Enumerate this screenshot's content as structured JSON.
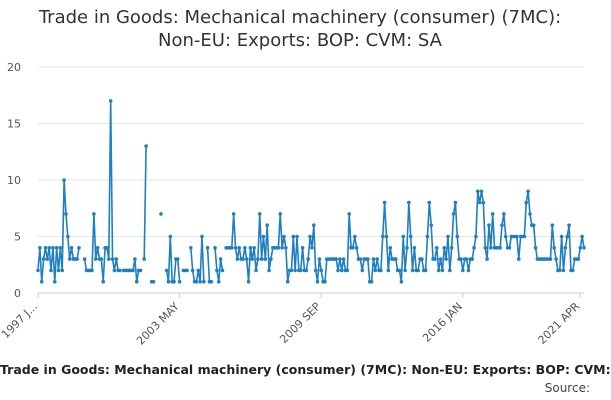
{
  "chart_data": {
    "type": "line",
    "title_lines": [
      "Trade in Goods: Mechanical machinery (consumer) (7MC):",
      "Non-EU: Exports: BOP: CVM: SA"
    ],
    "caption": "Trade in Goods: Mechanical machinery (consumer) (7MC): Non-EU: Exports: BOP: CVM:",
    "source_label": "Source:",
    "x_tick_labels": [
      "1997 J...",
      "2003 MAY",
      "2009 SEP",
      "2016 JAN",
      "2021 APR"
    ],
    "x_tick_positions": [
      0,
      76,
      152,
      228,
      291
    ],
    "y_ticks": [
      0,
      5,
      10,
      15,
      20
    ],
    "ylim": [
      0,
      20
    ],
    "grid": true,
    "line_color": "#1f7fc0",
    "series": [
      {
        "values": [
          2,
          4,
          1,
          3,
          4,
          3,
          4,
          2,
          4,
          1,
          4,
          2,
          4,
          2,
          10,
          7,
          5,
          3,
          4,
          3,
          3,
          3,
          4,
          null,
          null,
          3,
          2,
          2,
          2,
          2,
          7,
          3,
          4,
          3,
          3,
          1,
          4,
          4,
          3,
          17,
          3,
          2,
          3,
          2,
          2,
          null,
          2,
          2,
          2,
          2,
          2,
          2,
          3,
          1,
          2,
          2,
          null,
          3,
          13,
          null,
          null,
          1,
          1,
          null,
          null,
          null,
          7,
          null,
          null,
          2,
          1,
          5,
          1,
          1,
          3,
          3,
          1,
          null,
          2,
          2,
          2,
          null,
          4,
          2,
          1,
          1,
          2,
          1,
          5,
          1,
          null,
          4,
          1,
          1,
          null,
          4,
          2,
          1,
          3,
          2,
          null,
          4,
          4,
          4,
          4,
          7,
          4,
          3,
          4,
          3,
          3,
          4,
          3,
          1,
          4,
          3,
          4,
          2,
          3,
          7,
          3,
          5,
          3,
          6,
          2,
          3,
          4,
          4,
          4,
          4,
          7,
          4,
          5,
          4,
          1,
          2,
          2,
          5,
          2,
          5,
          2,
          2,
          4,
          2,
          2,
          3,
          5,
          4,
          6,
          2,
          1,
          3,
          2,
          1,
          1,
          3,
          3,
          3,
          3,
          3,
          3,
          2,
          3,
          2,
          3,
          2,
          2,
          7,
          4,
          4,
          5,
          4,
          3,
          3,
          2,
          3,
          3,
          3,
          1,
          1,
          3,
          2,
          3,
          2,
          2,
          5,
          8,
          5,
          2,
          4,
          3,
          3,
          3,
          2,
          2,
          1,
          5,
          2,
          4,
          8,
          5,
          2,
          4,
          2,
          2,
          3,
          3,
          2,
          2,
          5,
          8,
          6,
          3,
          3,
          4,
          2,
          3,
          2,
          4,
          3,
          5,
          2,
          4,
          7,
          8,
          5,
          3,
          3,
          2,
          3,
          3,
          2,
          3,
          3,
          4,
          5,
          9,
          8,
          9,
          8,
          4,
          3,
          6,
          4,
          7,
          4,
          4,
          4,
          4,
          6,
          7,
          5,
          4,
          4,
          5,
          5,
          5,
          5,
          3,
          5,
          5,
          5,
          8,
          9,
          7,
          6,
          6,
          4,
          3,
          3,
          3,
          3,
          3,
          3,
          3,
          3,
          6,
          4,
          3,
          2,
          2,
          5,
          2,
          4,
          5,
          6,
          2,
          2,
          3,
          3,
          3,
          4,
          5,
          4
        ]
      }
    ]
  }
}
